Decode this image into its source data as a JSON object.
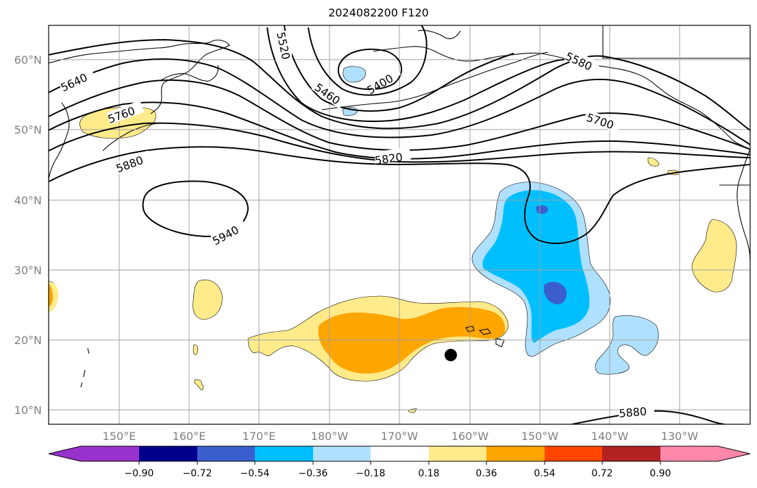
{
  "title": "2024082200 F120",
  "map": {
    "lat_labels": [
      "60°N",
      "50°N",
      "40°N",
      "30°N",
      "20°N",
      "10°N"
    ],
    "lon_labels": [
      "150°E",
      "160°E",
      "170°E",
      "180°W",
      "170°W",
      "160°W",
      "150°W",
      "140°W",
      "130°W"
    ],
    "contour_labels": [
      "5520",
      "5400",
      "5460",
      "5580",
      "5640",
      "5760",
      "5700",
      "5820",
      "5880",
      "5940",
      "5880"
    ],
    "storm_marker": {
      "lat": 17.8,
      "lon": -162.5
    }
  },
  "colorbar": {
    "ticks": [
      "−0.90",
      "−0.72",
      "−0.54",
      "−0.36",
      "−0.18",
      "0.18",
      "0.36",
      "0.54",
      "0.72",
      "0.90"
    ],
    "colors": [
      "#9932CC",
      "#00008B",
      "#3A5FCD",
      "#00BFFF",
      "#B0E0FF",
      "#FFFFFF",
      "#FFEB8A",
      "#FFA500",
      "#FF4500",
      "#B22222",
      "#FF88AA"
    ],
    "extend": "both"
  },
  "colors": {
    "frame": "#000000",
    "grid": "#a0a0a0",
    "tick_label": "#808080"
  }
}
